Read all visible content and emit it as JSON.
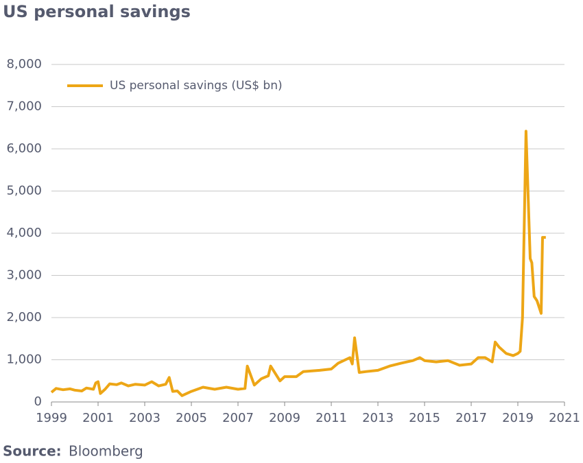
{
  "chart_data": {
    "type": "line",
    "title": "US personal savings",
    "source_label": "Source:",
    "source": "Bloomberg",
    "x": [
      1999.0,
      1999.2,
      1999.5,
      1999.8,
      2000.0,
      2000.3,
      2000.5,
      2000.8,
      2000.9,
      2001.0,
      2001.1,
      2001.3,
      2001.5,
      2001.8,
      2002.0,
      2002.3,
      2002.6,
      2003.0,
      2003.3,
      2003.6,
      2003.9,
      2004.05,
      2004.2,
      2004.4,
      2004.6,
      2004.8,
      2005.0,
      2005.5,
      2006.0,
      2006.5,
      2007.0,
      2007.3,
      2007.4,
      2007.7,
      2008.0,
      2008.3,
      2008.4,
      2008.8,
      2009.0,
      2009.5,
      2009.8,
      2010.5,
      2011.0,
      2011.3,
      2011.8,
      2011.9,
      2012.0,
      2012.2,
      2012.5,
      2013.0,
      2013.5,
      2014.0,
      2014.5,
      2014.8,
      2015.0,
      2015.5,
      2016.0,
      2016.5,
      2017.0,
      2017.3,
      2017.6,
      2017.9,
      2018.03,
      2018.2,
      2018.5,
      2018.8,
      2019.0,
      2019.1,
      2019.2,
      2019.35,
      2019.53,
      2019.6,
      2019.7,
      2019.82,
      2020.0,
      2020.06,
      2020.2
    ],
    "series": [
      {
        "name": "US personal savings (US$ bn)",
        "color": "#eda616",
        "values": [
          230,
          320,
          290,
          310,
          280,
          260,
          330,
          300,
          450,
          480,
          200,
          300,
          430,
          410,
          450,
          380,
          420,
          400,
          480,
          380,
          420,
          580,
          250,
          260,
          150,
          200,
          250,
          350,
          300,
          350,
          300,
          320,
          850,
          400,
          550,
          620,
          850,
          500,
          600,
          600,
          720,
          750,
          780,
          920,
          1050,
          900,
          1520,
          700,
          720,
          750,
          850,
          920,
          980,
          1050,
          980,
          950,
          980,
          870,
          900,
          1050,
          1050,
          950,
          1420,
          1300,
          1150,
          1100,
          1150,
          1200,
          2000,
          6420,
          3400,
          3300,
          2500,
          2400,
          2100,
          3900,
          3900
        ]
      }
    ],
    "xlim": [
      1999,
      2021
    ],
    "xticks": [
      1999,
      2001,
      2003,
      2005,
      2007,
      2009,
      2011,
      2013,
      2015,
      2017,
      2019,
      2021
    ],
    "ylim": [
      0,
      8000
    ],
    "yticks": [
      0,
      {
        "value": 1000,
        "label": "1,000"
      },
      {
        "value": 2000,
        "label": "2,000"
      },
      {
        "value": 3000,
        "label": "3,000"
      },
      {
        "value": 4000,
        "label": "4,000"
      },
      {
        "value": 5000,
        "label": "5,000"
      },
      {
        "value": 6000,
        "label": "6,000"
      },
      {
        "value": 7000,
        "label": "7,000"
      },
      {
        "value": 8000,
        "label": "8,000"
      }
    ],
    "grid": true,
    "legend": "top-left"
  }
}
